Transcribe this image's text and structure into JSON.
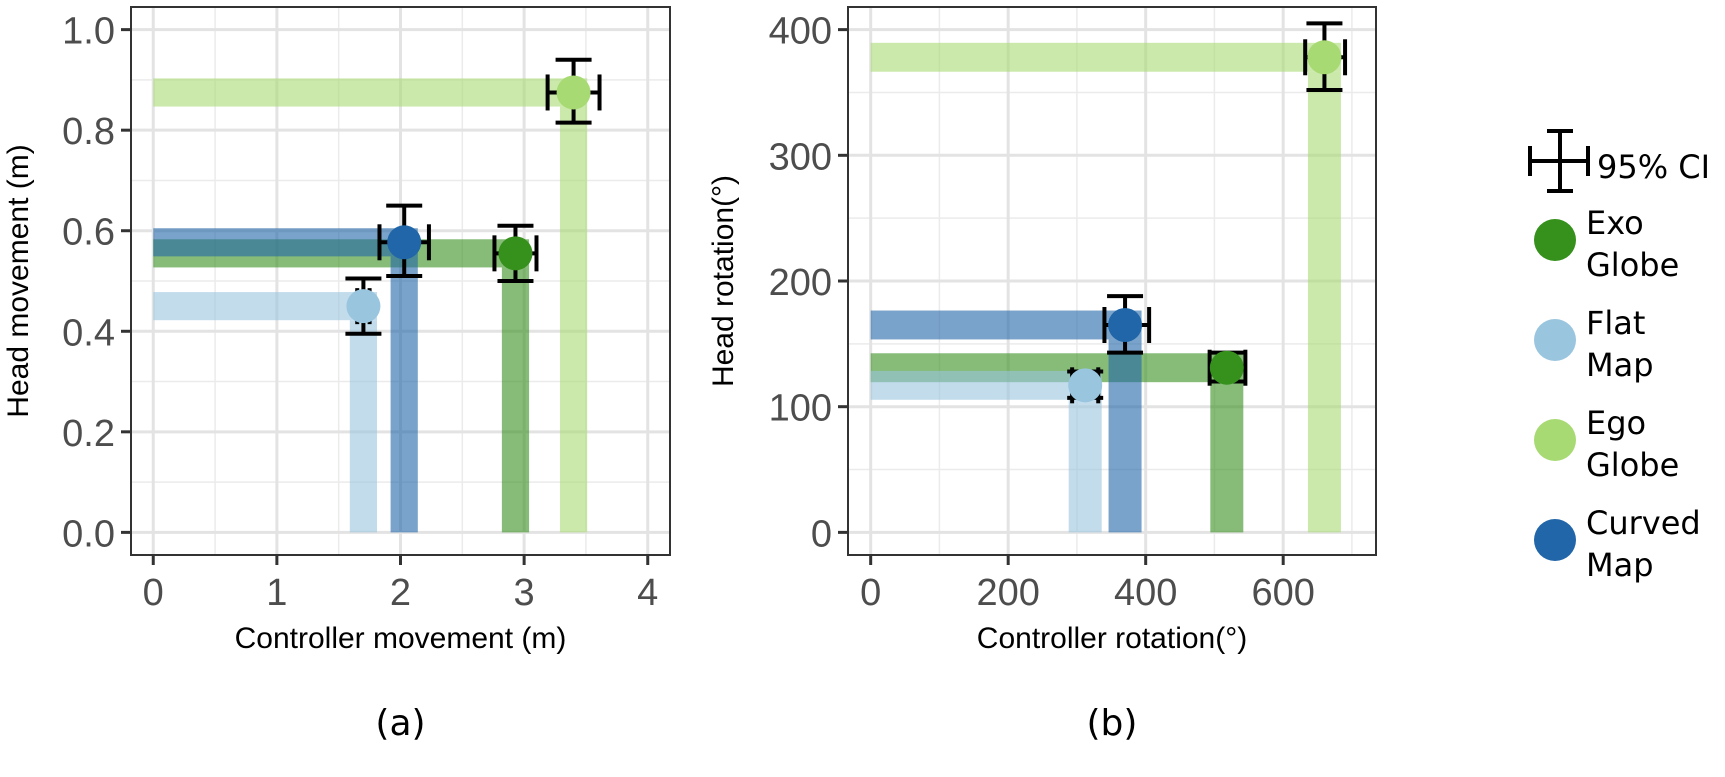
{
  "chart_data": [
    {
      "type": "scatter",
      "panel_label": "(a)",
      "xlabel": "Controller movement (m)",
      "ylabel": "Head movement (m)",
      "xlim": [
        -0.18,
        4.18
      ],
      "ylim": [
        -0.045,
        1.045
      ],
      "xticks": [
        0,
        1,
        2,
        3,
        4
      ],
      "xtick_labels": [
        "0",
        "1",
        "2",
        "3",
        "4"
      ],
      "yticks": [
        0.0,
        0.2,
        0.4,
        0.6,
        0.8,
        1.0
      ],
      "ytick_labels": [
        "0.0",
        "0.2",
        "0.4",
        "0.6",
        "0.8",
        "1.0"
      ],
      "grid": true,
      "bar_halfwidth_x": 0.11,
      "bar_halfwidth_y": 0.028,
      "series": [
        {
          "name": "Flat Map",
          "x": 1.7,
          "y": 0.45,
          "x_ci": [
            1.65,
            1.75
          ],
          "y_ci": [
            0.395,
            0.505
          ]
        },
        {
          "name": "Curved Map",
          "x": 2.03,
          "y": 0.577,
          "x_ci": [
            1.83,
            2.23
          ],
          "y_ci": [
            0.51,
            0.65
          ]
        },
        {
          "name": "Exo Globe",
          "x": 2.93,
          "y": 0.555,
          "x_ci": [
            2.76,
            3.1
          ],
          "y_ci": [
            0.5,
            0.61
          ]
        },
        {
          "name": "Ego Globe",
          "x": 3.4,
          "y": 0.875,
          "x_ci": [
            3.19,
            3.61
          ],
          "y_ci": [
            0.815,
            0.94
          ]
        }
      ]
    },
    {
      "type": "scatter",
      "panel_label": "(b)",
      "xlabel": "Controller rotation(°)",
      "ylabel": "Head rotation(°)",
      "xlim": [
        -33,
        735
      ],
      "ylim": [
        -18,
        418
      ],
      "xticks": [
        0,
        200,
        400,
        600
      ],
      "xtick_labels": [
        "0",
        "200",
        "400",
        "600"
      ],
      "yticks": [
        0,
        100,
        200,
        300,
        400
      ],
      "ytick_labels": [
        "0",
        "100",
        "200",
        "300",
        "400"
      ],
      "grid": true,
      "bar_halfwidth_x": 24,
      "bar_halfwidth_y": 11.5,
      "series": [
        {
          "name": "Flat Map",
          "x": 312,
          "y": 117,
          "x_ci": [
            293,
            331
          ],
          "y_ci": [
            107,
            128
          ]
        },
        {
          "name": "Curved Map",
          "x": 370,
          "y": 165,
          "x_ci": [
            340,
            405
          ],
          "y_ci": [
            143,
            188
          ]
        },
        {
          "name": "Exo Globe",
          "x": 518,
          "y": 131,
          "x_ci": [
            493,
            545
          ],
          "y_ci": [
            120,
            143
          ]
        },
        {
          "name": "Ego Globe",
          "x": 660,
          "y": 378,
          "x_ci": [
            632,
            690
          ],
          "y_ci": [
            352,
            405
          ]
        }
      ]
    }
  ],
  "legend": {
    "placement": "right",
    "ci_label": "95% CI",
    "items": [
      {
        "name": "Exo Globe",
        "lines": [
          "Exo",
          "Globe"
        ]
      },
      {
        "name": "Flat Map",
        "lines": [
          "Flat",
          "Map"
        ]
      },
      {
        "name": "Ego Globe",
        "lines": [
          "Ego",
          "Globe"
        ]
      },
      {
        "name": "Curved Map",
        "lines": [
          "Curved",
          "Map"
        ]
      }
    ]
  },
  "colors": {
    "Exo Globe": "#35901c",
    "Flat Map": "#9ac5df",
    "Ego Globe": "#a8da73",
    "Curved Map": "#2166a8",
    "grid": "#e6e6e6",
    "axis": "#333333"
  }
}
